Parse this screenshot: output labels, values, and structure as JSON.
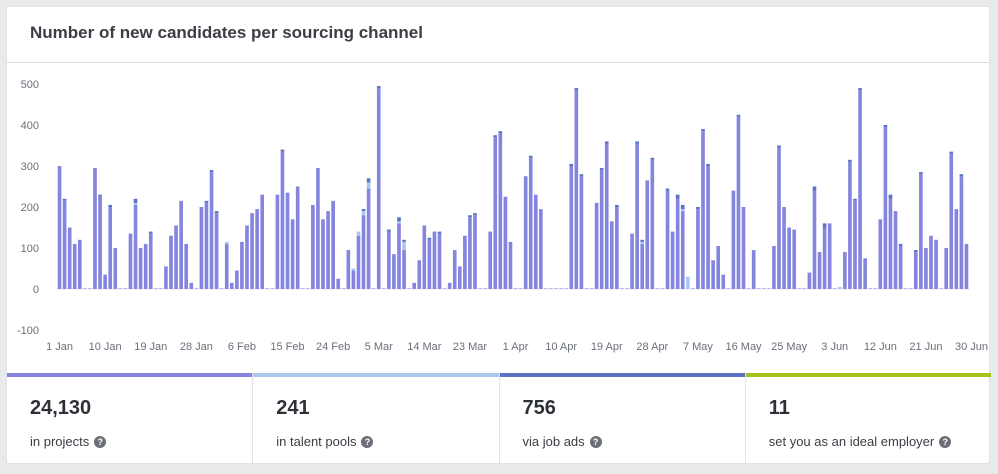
{
  "card": {
    "title": "Number of new candidates per sourcing channel"
  },
  "chart_data": {
    "type": "bar",
    "stacked": true,
    "title": "Number of new candidates per sourcing channel",
    "ylim": [
      -100,
      500
    ],
    "yticks": [
      -100,
      0,
      100,
      200,
      300,
      400,
      500
    ],
    "xtick_labels": [
      "1 Jan",
      "10 Jan",
      "19 Jan",
      "28 Jan",
      "6 Feb",
      "15 Feb",
      "24 Feb",
      "5 Mar",
      "14 Mar",
      "23 Mar",
      "1 Apr",
      "10 Apr",
      "19 Apr",
      "28 Apr",
      "7 May",
      "16 May",
      "25 May",
      "3 Jun",
      "12 Jun",
      "21 Jun",
      "30 Jun"
    ],
    "grid": false,
    "legend": "none",
    "colors": {
      "projects": "#8585e0",
      "talent_pools": "#a9c8f0",
      "job_ads": "#5b73c2",
      "ideal_employer": "#a4c41c"
    },
    "series": [
      {
        "key": "projects",
        "values": [
          300,
          215,
          150,
          110,
          120,
          0,
          0,
          295,
          225,
          35,
          200,
          100,
          0,
          0,
          135,
          205,
          100,
          110,
          135,
          0,
          0,
          55,
          130,
          155,
          215,
          110,
          15,
          0,
          200,
          210,
          285,
          185,
          0,
          110,
          15,
          45,
          115,
          155,
          185,
          195,
          230,
          0,
          0,
          230,
          335,
          235,
          170,
          250,
          0,
          0,
          205,
          295,
          170,
          190,
          215,
          25,
          0,
          95,
          45,
          130,
          180,
          245,
          0,
          490,
          0,
          140,
          85,
          160,
          95,
          0,
          15,
          70,
          155,
          120,
          140,
          135,
          0,
          15,
          95,
          55,
          130,
          175,
          180,
          0,
          0,
          140,
          370,
          380,
          225,
          115,
          0,
          0,
          275,
          320,
          230,
          195,
          0,
          0,
          0,
          0,
          0,
          300,
          485,
          275,
          0,
          0,
          210,
          290,
          355,
          165,
          200,
          0,
          0,
          135,
          355,
          110,
          265,
          315,
          0,
          0,
          240,
          140,
          220,
          190,
          0,
          0,
          195,
          385,
          300,
          70,
          105,
          35,
          0,
          240,
          420,
          200,
          0,
          95,
          0,
          0,
          0,
          105,
          345,
          200,
          150,
          145,
          0,
          0,
          40,
          240,
          90,
          150,
          160,
          0,
          0,
          90,
          310,
          215,
          485,
          75,
          0,
          0,
          170,
          395,
          220,
          190,
          105,
          0,
          0,
          90,
          280,
          100,
          130,
          120,
          0,
          100,
          330,
          195,
          275,
          110
        ]
      },
      {
        "key": "talent_pools",
        "values": [
          0,
          0,
          0,
          0,
          0,
          0,
          0,
          0,
          0,
          0,
          0,
          0,
          0,
          0,
          0,
          5,
          0,
          0,
          0,
          0,
          0,
          0,
          0,
          0,
          0,
          0,
          0,
          0,
          0,
          0,
          0,
          0,
          0,
          5,
          0,
          0,
          0,
          0,
          0,
          0,
          0,
          0,
          0,
          0,
          0,
          0,
          0,
          0,
          0,
          0,
          0,
          0,
          0,
          0,
          0,
          0,
          0,
          0,
          5,
          10,
          10,
          15,
          0,
          0,
          0,
          0,
          0,
          5,
          20,
          0,
          0,
          0,
          0,
          0,
          0,
          0,
          0,
          0,
          0,
          0,
          0,
          0,
          0,
          0,
          0,
          0,
          0,
          0,
          0,
          0,
          0,
          0,
          0,
          0,
          0,
          0,
          0,
          0,
          0,
          0,
          0,
          0,
          0,
          0,
          0,
          0,
          0,
          0,
          0,
          0,
          0,
          0,
          0,
          0,
          0,
          5,
          0,
          0,
          0,
          0,
          0,
          0,
          0,
          5,
          30,
          0,
          0,
          0,
          0,
          0,
          0,
          0,
          0,
          0,
          0,
          0,
          0,
          0,
          0,
          0,
          0,
          0,
          0,
          0,
          0,
          0,
          0,
          0,
          0,
          0,
          0,
          0,
          0,
          0,
          5,
          0,
          0,
          0,
          0,
          0,
          0,
          0,
          0,
          0,
          0,
          0,
          0,
          0,
          0,
          0,
          0,
          0,
          0,
          0,
          0,
          0,
          0,
          0,
          0,
          0,
          0,
          0,
          0,
          0,
          0,
          0,
          0
        ]
      },
      {
        "key": "job_ads",
        "values": [
          0,
          5,
          0,
          0,
          0,
          0,
          0,
          0,
          5,
          0,
          5,
          0,
          0,
          0,
          0,
          10,
          0,
          0,
          5,
          0,
          0,
          0,
          0,
          0,
          0,
          0,
          0,
          0,
          0,
          5,
          5,
          5,
          0,
          0,
          0,
          0,
          0,
          0,
          0,
          0,
          0,
          0,
          0,
          0,
          5,
          0,
          0,
          0,
          0,
          0,
          0,
          0,
          0,
          0,
          0,
          0,
          0,
          0,
          0,
          0,
          5,
          10,
          0,
          5,
          0,
          5,
          0,
          10,
          5,
          0,
          0,
          0,
          0,
          5,
          0,
          5,
          0,
          0,
          0,
          0,
          0,
          5,
          5,
          0,
          0,
          0,
          5,
          5,
          0,
          0,
          0,
          0,
          0,
          5,
          0,
          0,
          0,
          0,
          0,
          0,
          0,
          5,
          5,
          5,
          0,
          0,
          0,
          5,
          5,
          0,
          5,
          0,
          0,
          0,
          5,
          5,
          0,
          5,
          0,
          0,
          5,
          0,
          10,
          10,
          0,
          0,
          5,
          5,
          5,
          0,
          0,
          0,
          0,
          0,
          5,
          0,
          0,
          0,
          0,
          0,
          0,
          0,
          5,
          0,
          0,
          0,
          0,
          0,
          0,
          10,
          0,
          10,
          0,
          0,
          0,
          0,
          5,
          5,
          5,
          0,
          0,
          0,
          0,
          5,
          10,
          0,
          5,
          0,
          0,
          5,
          5,
          0,
          0,
          0,
          0,
          0,
          5,
          0,
          5,
          0
        ]
      }
    ]
  },
  "stats": [
    {
      "value": "24,130",
      "label": "in projects",
      "color": "#8585e0"
    },
    {
      "value": "241",
      "label": "in talent pools",
      "color": "#a9c8f0"
    },
    {
      "value": "756",
      "label": "via job ads",
      "color": "#5b73c2"
    },
    {
      "value": "11",
      "label": "set you as an ideal employer",
      "color": "#a4c41c"
    }
  ],
  "help_icon_glyph": "?"
}
